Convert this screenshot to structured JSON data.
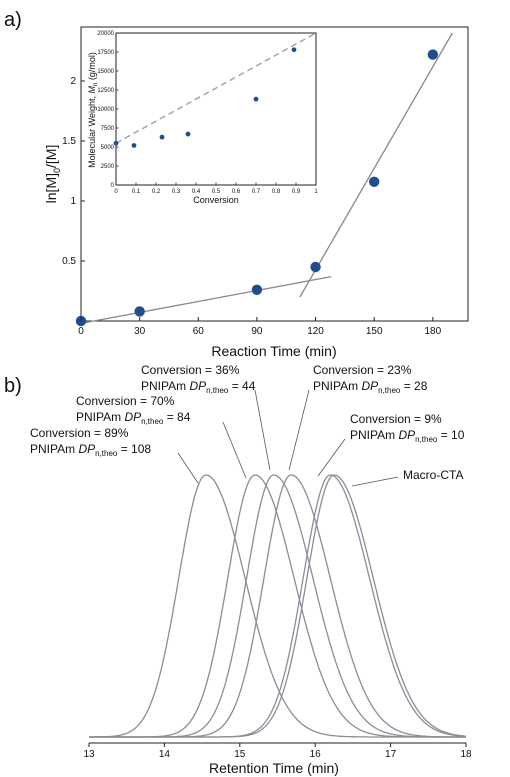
{
  "panel_a_label": "a)",
  "panel_b_label": "b)",
  "chart_data": [
    {
      "type": "scatter",
      "panel": "a",
      "xlabel": "Reaction Time (min)",
      "ylabel_main": "ln[M]",
      "ylabel_sub0": "0",
      "ylabel_mid": "/[M]",
      "xlim": [
        0,
        198
      ],
      "ylim": [
        0,
        2.45
      ],
      "xticks": [
        "0",
        "30",
        "60",
        "90",
        "120",
        "150",
        "180"
      ],
      "yticks": [
        "0.5",
        "1",
        "1.5",
        "2"
      ],
      "series": [
        {
          "points": [
            [
              0,
              0.0
            ],
            [
              30,
              0.08
            ],
            [
              90,
              0.26
            ],
            [
              120,
              0.45
            ],
            [
              150,
              1.16
            ],
            [
              180,
              2.22
            ]
          ]
        }
      ],
      "fit_lines": [
        {
          "x": [
            0,
            128
          ],
          "y": [
            -0.02,
            0.37
          ]
        },
        {
          "x": [
            112,
            190
          ],
          "y": [
            0.2,
            2.4
          ]
        }
      ],
      "grid": false
    },
    {
      "type": "scatter",
      "panel": "a-inset",
      "xlabel": "Conversion",
      "ylabel_main": "Molecular Weight, ",
      "ylabel_M": "M",
      "ylabel_n": "n",
      "ylabel_unit": " (g/mol)",
      "xlim": [
        0,
        1
      ],
      "ylim": [
        0,
        20000
      ],
      "xticks": [
        "0",
        "0.1",
        "0.2",
        "0.3",
        "0.4",
        "0.5",
        "0.6",
        "0.7",
        "0.8",
        "0.9",
        "1"
      ],
      "yticks": [
        "0",
        "2500",
        "5000",
        "7500",
        "10000",
        "12500",
        "15000",
        "17500",
        "20000"
      ],
      "series": [
        {
          "points": [
            [
              0.0,
              5500
            ],
            [
              0.09,
              5200
            ],
            [
              0.23,
              6300
            ],
            [
              0.36,
              6700
            ],
            [
              0.7,
              11300
            ],
            [
              0.89,
              17800
            ]
          ]
        }
      ],
      "theory_line": {
        "x": [
          0,
          1
        ],
        "y": [
          5500,
          20000
        ],
        "style": "dashed"
      }
    },
    {
      "type": "line",
      "panel": "b",
      "xlabel": "Retention Time (min)",
      "xlim": [
        13,
        18
      ],
      "xticks": [
        "13",
        "14",
        "15",
        "16",
        "17",
        "18"
      ],
      "series": [
        {
          "peak_min": 14.55
        },
        {
          "peak_min": 15.2
        },
        {
          "peak_min": 15.45
        },
        {
          "peak_min": 15.68
        },
        {
          "peak_min": 16.2
        },
        {
          "peak_min": 16.25
        }
      ],
      "annotations": [
        {
          "line1": "Conversion = 89%",
          "line2a": "PNIPAm ",
          "dp": "DP",
          "dp_sub": "n,theo",
          "line2b": " = 108"
        },
        {
          "line1": "Conversion = 70%",
          "line2a": "PNIPAm ",
          "dp": "DP",
          "dp_sub": "n,theo",
          "line2b": " = 84"
        },
        {
          "line1": "Conversion =  36%",
          "line2a": "PNIPAm ",
          "dp": "DP",
          "dp_sub": "n,theo",
          "line2b": " = 44"
        },
        {
          "line1": "Conversion = 23%",
          "line2a": "PNIPAm ",
          "dp": "DP",
          "dp_sub": "n,theo",
          "line2b": " = 28"
        },
        {
          "line1": "Conversion = 9%",
          "line2a": "PNIPAm ",
          "dp": "DP",
          "dp_sub": "n,theo",
          "line2b": " = 10"
        },
        {
          "line1": "Macro-CTA"
        }
      ]
    }
  ],
  "colors": {
    "marker": "#1f4e8c",
    "fit": "#888888",
    "trace": "#8c8c99",
    "axis": "#222222"
  }
}
